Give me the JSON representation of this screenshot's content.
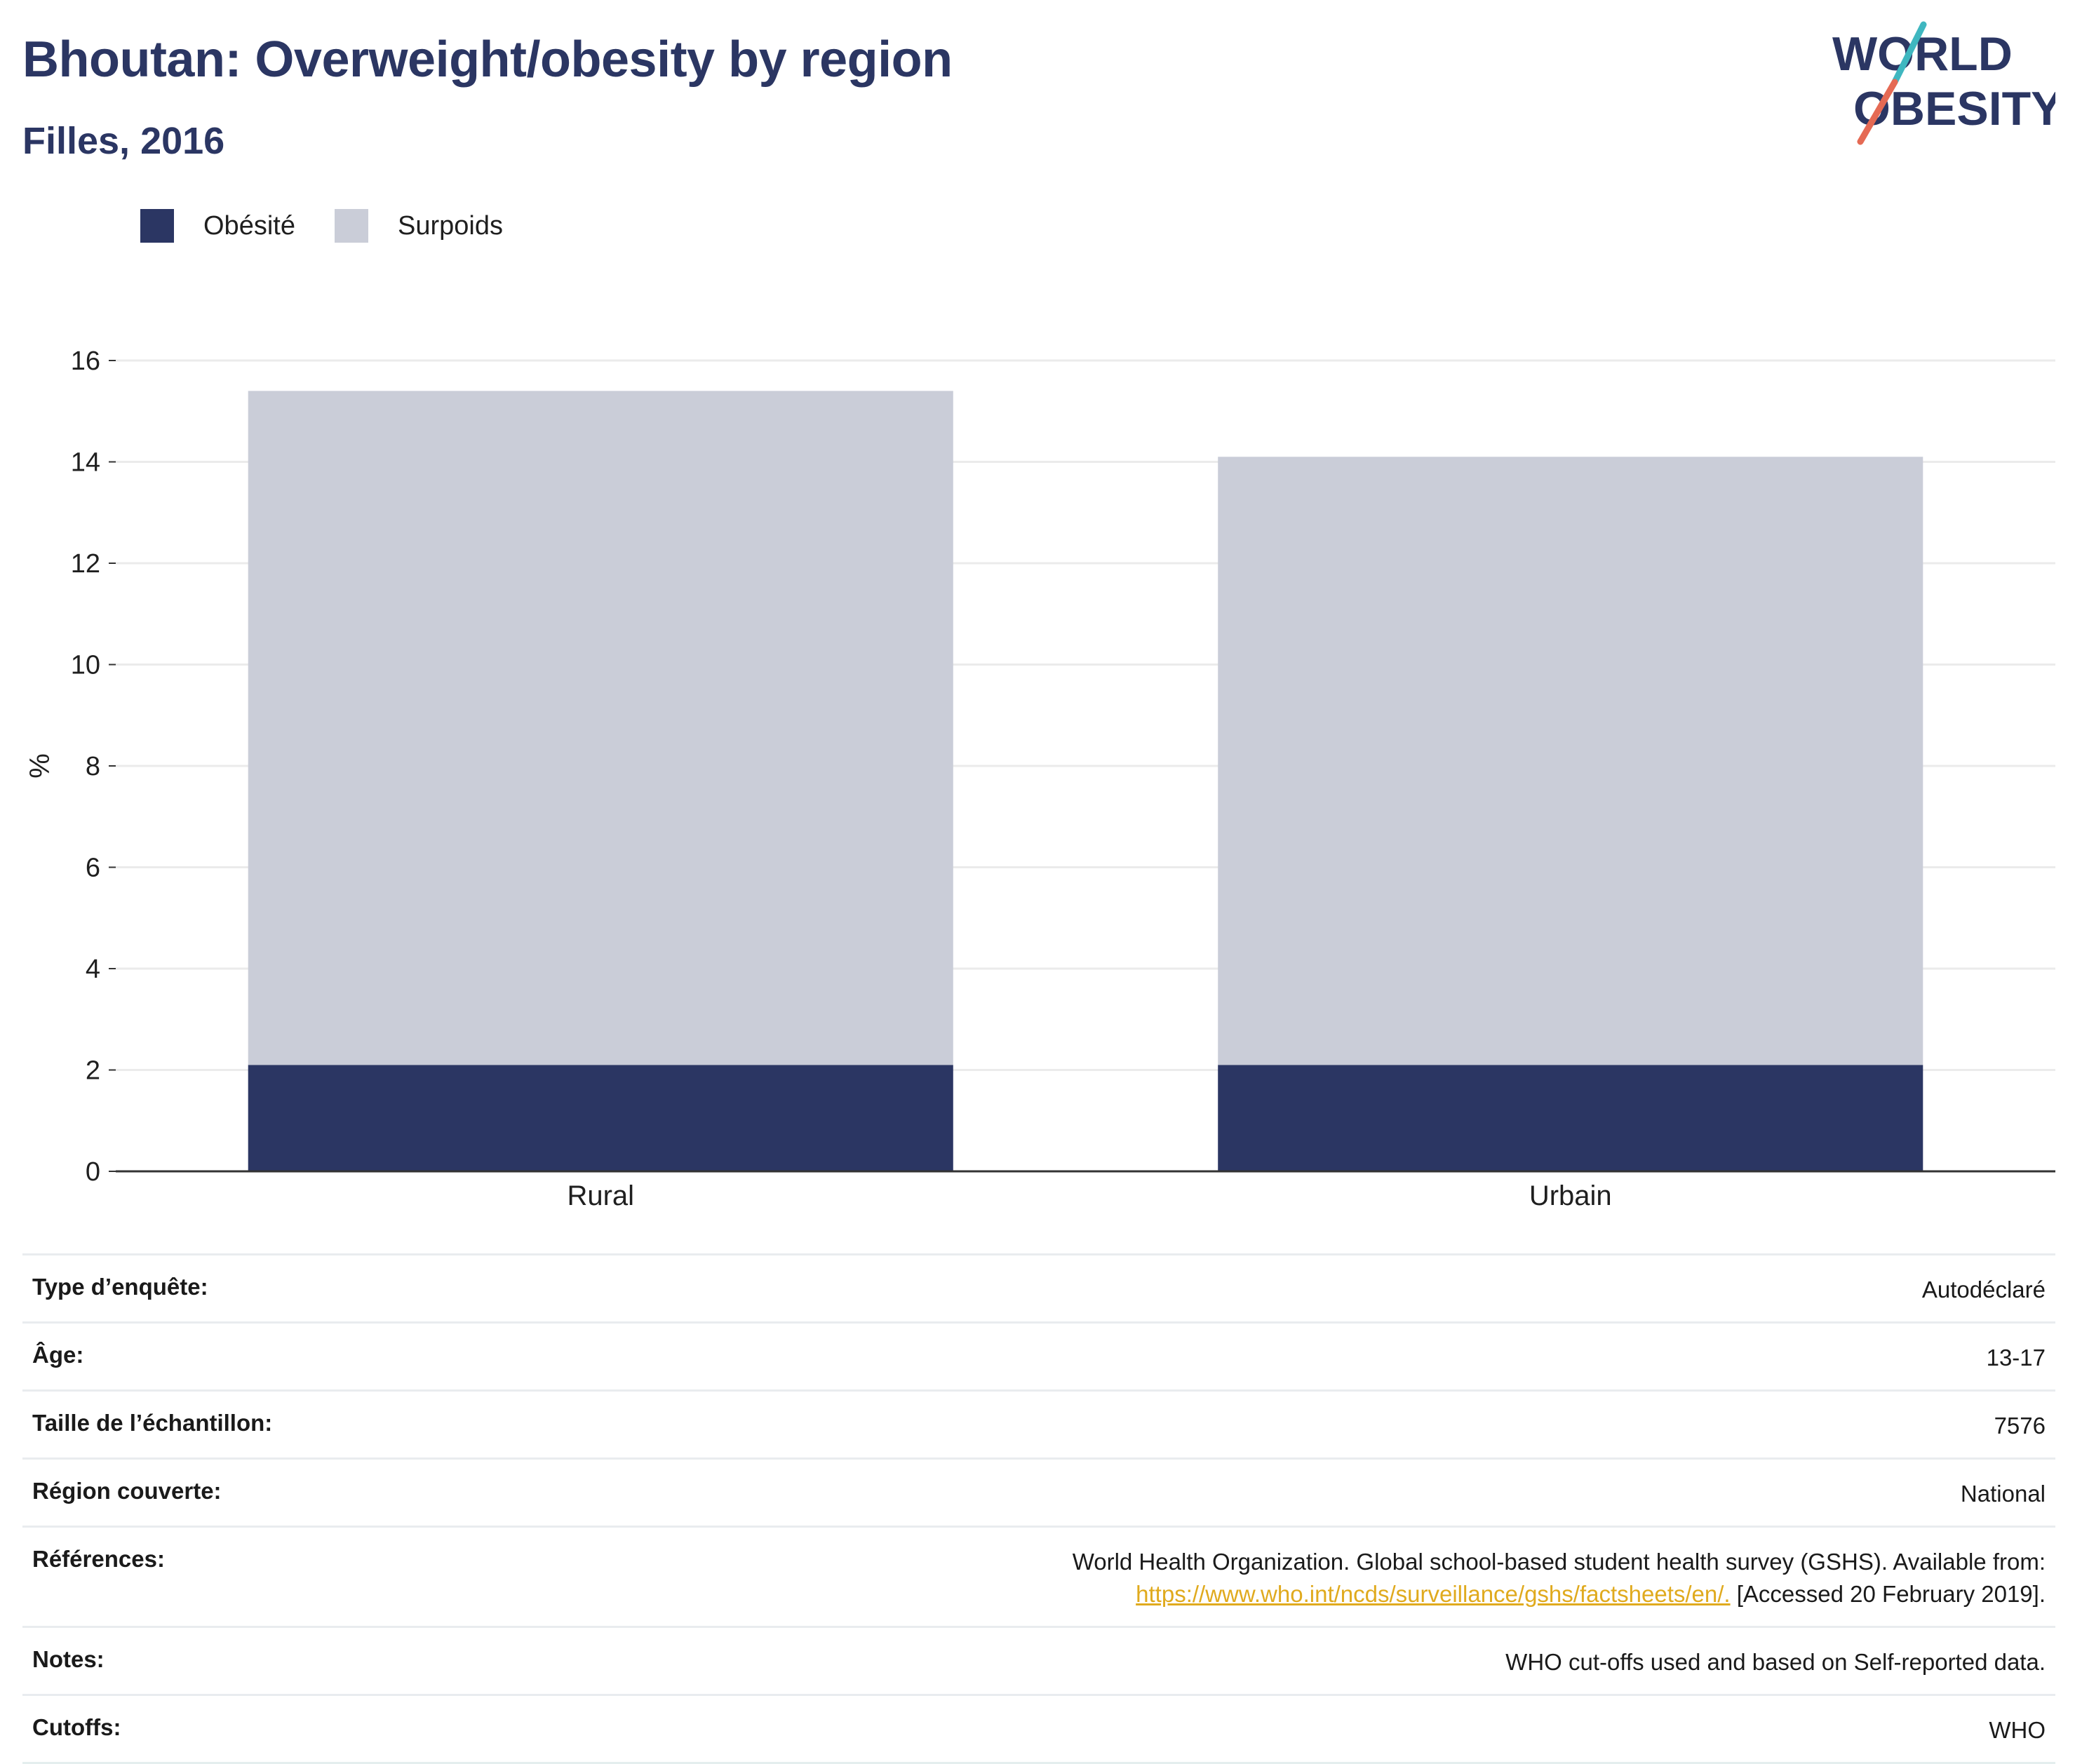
{
  "header": {
    "title": "Bhoutan: Overweight/obesity by region",
    "subtitle": "Filles, 2016"
  },
  "logo": {
    "line1": "WORLD",
    "line2": "OBESITY"
  },
  "colors": {
    "obesity": "#2b3663",
    "overweight": "#cacdd8",
    "accent_teal": "#3fb7c0",
    "accent_red": "#e56a54",
    "link": "#e0aa1e"
  },
  "legend": [
    {
      "label": "Obésité",
      "color": "#2b3663"
    },
    {
      "label": "Surpoids",
      "color": "#cacdd8"
    }
  ],
  "chart_data": {
    "type": "bar",
    "stacked": true,
    "categories": [
      "Rural",
      "Urbain"
    ],
    "series": [
      {
        "name": "Obésité",
        "values": [
          2.1,
          2.1
        ]
      },
      {
        "name": "Surpoids",
        "values": [
          13.3,
          12.0
        ]
      }
    ],
    "ylabel": "%",
    "xlabel": "",
    "ylim": [
      0,
      16
    ],
    "yticks": [
      0,
      2,
      4,
      6,
      8,
      10,
      12,
      14,
      16
    ],
    "grid": true,
    "legend_position": "top-left"
  },
  "info": {
    "survey_type_label": "Type d’enquête:",
    "survey_type_value": "Autodéclaré",
    "age_label": "Âge:",
    "age_value": "13-17",
    "sample_label": "Taille de l’échantillon:",
    "sample_value": "7576",
    "region_label": "Région couverte:",
    "region_value": "National",
    "references_label": "Références:",
    "references_text": "World Health Organization. Global school-based student health survey (GSHS). Available from:",
    "references_link": "https://www.who.int/ncds/surveillance/gshs/factsheets/en/.",
    "references_accessed": "[Accessed 20 February 2019].",
    "notes_label": "Notes:",
    "notes_value": "WHO cut-offs used and based on Self-reported data.",
    "cutoffs_label": "Cutoffs:",
    "cutoffs_value": "WHO"
  }
}
